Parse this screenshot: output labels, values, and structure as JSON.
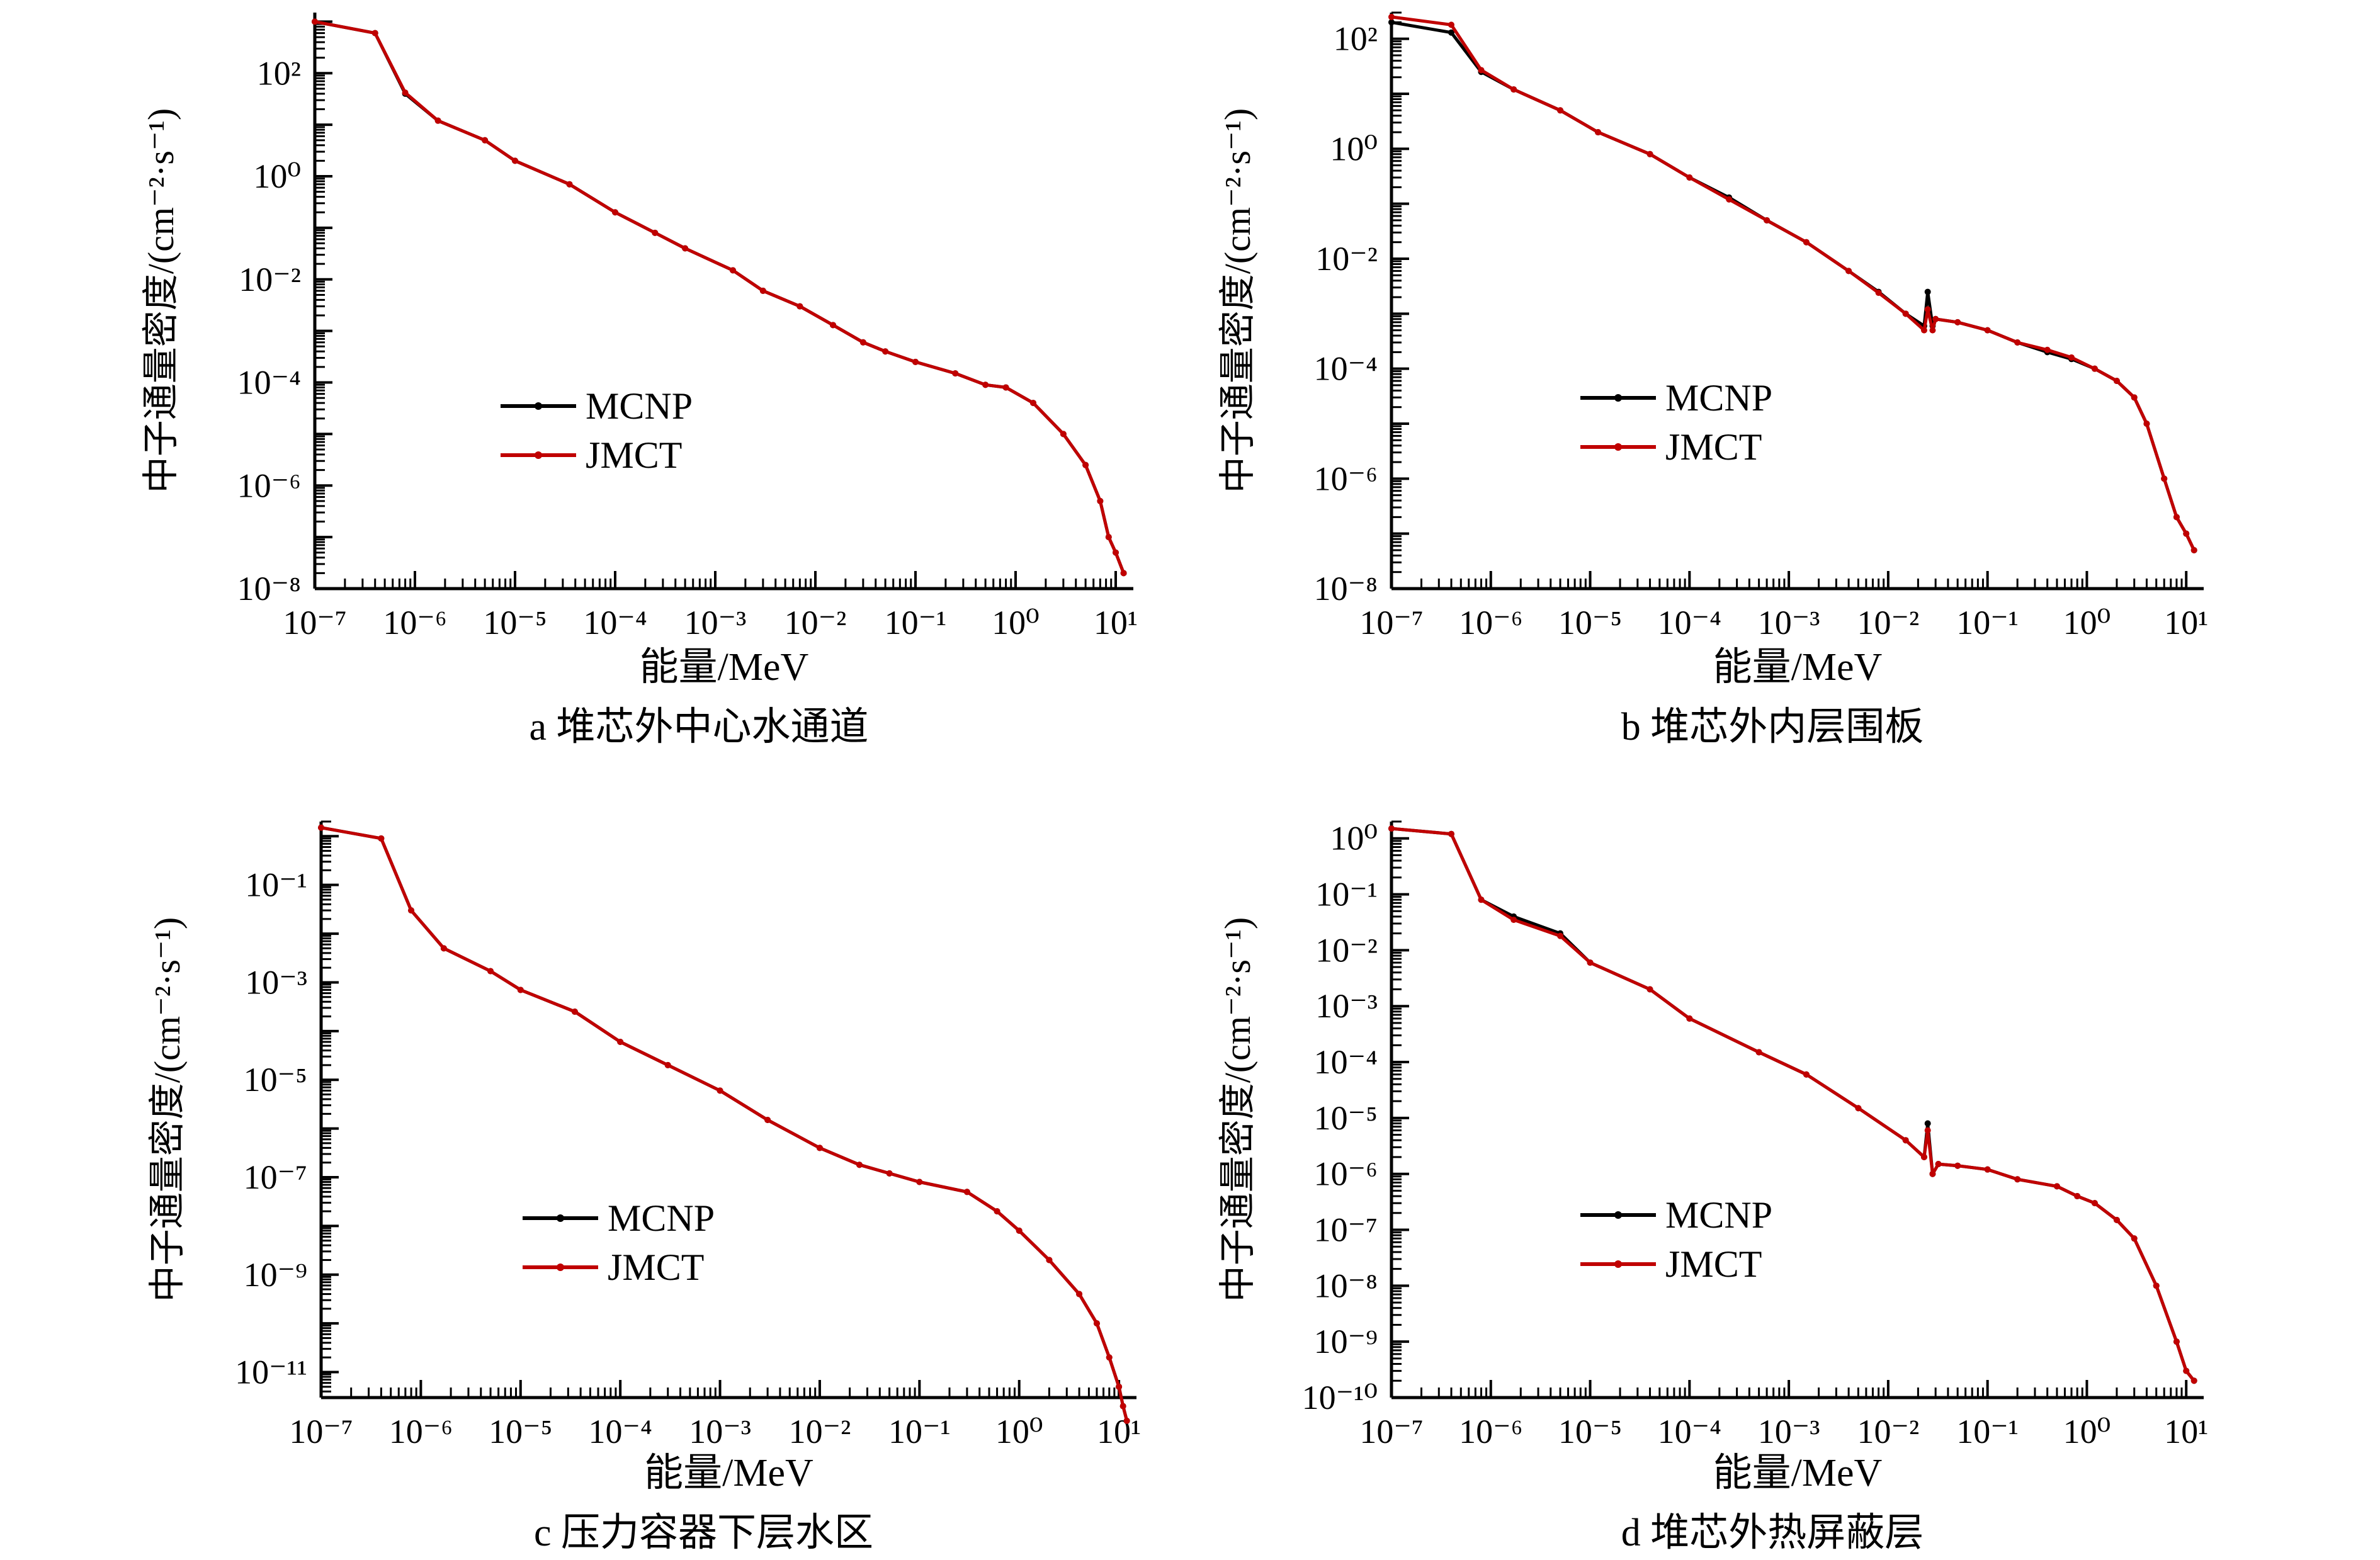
{
  "chart_data": [
    {
      "type": "line",
      "caption": "a  堆芯外中心水通道",
      "xlabel": "能量/MeV",
      "ylabel": "中子通量密度/(cm⁻²·s⁻¹)",
      "xscale": "log",
      "yscale": "log",
      "xlim": [
        1e-07,
        15
      ],
      "ylim": [
        1e-08,
        1500
      ],
      "x_ticks": [
        1e-07,
        1e-06,
        1e-05,
        0.0001,
        0.001,
        0.01,
        0.1,
        1,
        10
      ],
      "x_tick_labels": [
        "10⁻⁷",
        "10⁻⁶",
        "10⁻⁵",
        "10⁻⁴",
        "10⁻³",
        "10⁻²",
        "10⁻¹",
        "10⁰",
        "10¹"
      ],
      "y_ticks": [
        1e-08,
        1e-06,
        0.0001,
        0.01,
        1,
        100
      ],
      "y_tick_labels": [
        "10⁻⁸",
        "10⁻⁶",
        "10⁻⁴",
        "10⁻²",
        "10⁰",
        "10²"
      ],
      "legend": {
        "position": "center-left",
        "entries": [
          "MCNP",
          "JMCT"
        ]
      },
      "series": [
        {
          "name": "MCNP",
          "color": "#000000",
          "x": [
            1e-07,
            4e-07,
            8e-07,
            1.7e-06,
            5e-06,
            1e-05,
            3.5e-05,
            0.0001,
            0.00025,
            0.0005,
            0.0015,
            0.003,
            0.007,
            0.015,
            0.03,
            0.05,
            0.1,
            0.25,
            0.5,
            0.8,
            1.5,
            3,
            5,
            7,
            8.5,
            10,
            12
          ],
          "y": [
            1000,
            600,
            40,
            12,
            5,
            2,
            0.7,
            0.2,
            0.08,
            0.04,
            0.015,
            0.006,
            0.003,
            0.0013,
            0.0006,
            0.0004,
            0.00025,
            0.00015,
            9e-05,
            8e-05,
            4e-05,
            1e-05,
            2.5e-06,
            5e-07,
            1e-07,
            5e-08,
            2e-08
          ]
        },
        {
          "name": "JMCT",
          "color": "#c00000",
          "x": [
            1e-07,
            4e-07,
            8e-07,
            1.7e-06,
            5e-06,
            1e-05,
            3.5e-05,
            0.0001,
            0.00025,
            0.0005,
            0.0015,
            0.003,
            0.007,
            0.015,
            0.03,
            0.05,
            0.1,
            0.25,
            0.5,
            0.8,
            1.5,
            3,
            5,
            7,
            8.5,
            10,
            12
          ],
          "y": [
            1000,
            600,
            42,
            12,
            5,
            2,
            0.7,
            0.2,
            0.08,
            0.04,
            0.015,
            0.006,
            0.003,
            0.0013,
            0.0006,
            0.0004,
            0.00025,
            0.00015,
            9e-05,
            8e-05,
            4e-05,
            1e-05,
            2.5e-06,
            5e-07,
            1e-07,
            5e-08,
            2e-08
          ]
        }
      ]
    },
    {
      "type": "line",
      "caption": "b  堆芯外内层围板",
      "xlabel": "能量/MeV",
      "ylabel": "中子通量密度/(cm⁻²·s⁻¹)",
      "xscale": "log",
      "yscale": "log",
      "xlim": [
        1e-07,
        15
      ],
      "ylim": [
        1e-08,
        300
      ],
      "x_ticks": [
        1e-07,
        1e-06,
        1e-05,
        0.0001,
        0.001,
        0.01,
        0.1,
        1,
        10
      ],
      "x_tick_labels": [
        "10⁻⁷",
        "10⁻⁶",
        "10⁻⁵",
        "10⁻⁴",
        "10⁻³",
        "10⁻²",
        "10⁻¹",
        "10⁰",
        "10¹"
      ],
      "y_ticks": [
        1e-08,
        1e-06,
        0.0001,
        0.01,
        1,
        100
      ],
      "y_tick_labels": [
        "10⁻⁸",
        "10⁻⁶",
        "10⁻⁴",
        "10⁻²",
        "10⁰",
        "10²"
      ],
      "legend": {
        "position": "center-left",
        "entries": [
          "MCNP",
          "JMCT"
        ]
      },
      "series": [
        {
          "name": "MCNP",
          "color": "#000000",
          "x": [
            1e-07,
            4e-07,
            8e-07,
            1.7e-06,
            5e-06,
            1.2e-05,
            4e-05,
            0.0001,
            0.00025,
            0.0006,
            0.0015,
            0.004,
            0.008,
            0.015,
            0.023,
            0.025,
            0.028,
            0.03,
            0.05,
            0.1,
            0.2,
            0.4,
            0.7,
            1.2,
            2,
            3,
            4,
            6,
            8,
            10,
            12
          ],
          "y": [
            200,
            130,
            25,
            12,
            5,
            2,
            0.8,
            0.3,
            0.13,
            0.05,
            0.02,
            0.006,
            0.0025,
            0.001,
            0.0006,
            0.0025,
            0.0006,
            0.0008,
            0.0007,
            0.0005,
            0.0003,
            0.0002,
            0.00015,
            0.0001,
            6e-05,
            3e-05,
            1e-05,
            1e-06,
            2e-07,
            1e-07,
            5e-08
          ]
        },
        {
          "name": "JMCT",
          "color": "#c00000",
          "x": [
            1e-07,
            4e-07,
            8e-07,
            1.7e-06,
            5e-06,
            1.2e-05,
            4e-05,
            0.0001,
            0.00025,
            0.0006,
            0.0015,
            0.004,
            0.008,
            0.015,
            0.023,
            0.025,
            0.028,
            0.03,
            0.05,
            0.1,
            0.2,
            0.4,
            0.7,
            1.2,
            2,
            3,
            4,
            6,
            8,
            10,
            12
          ],
          "y": [
            250,
            180,
            27,
            12,
            5,
            2,
            0.8,
            0.3,
            0.12,
            0.05,
            0.02,
            0.006,
            0.0024,
            0.001,
            0.0005,
            0.0012,
            0.0005,
            0.0008,
            0.0007,
            0.0005,
            0.0003,
            0.00022,
            0.00016,
            0.0001,
            6e-05,
            3e-05,
            1e-05,
            1e-06,
            2e-07,
            1e-07,
            5e-08
          ]
        }
      ]
    },
    {
      "type": "line",
      "caption": "c  压力容器下层水区",
      "xlabel": "能量/MeV",
      "ylabel": "中子通量密度/(cm⁻²·s⁻¹)",
      "xscale": "log",
      "yscale": "log",
      "xlim": [
        1e-07,
        15
      ],
      "ylim": [
        3e-12,
        2
      ],
      "x_ticks": [
        1e-07,
        1e-06,
        1e-05,
        0.0001,
        0.001,
        0.01,
        0.1,
        1,
        10
      ],
      "x_tick_labels": [
        "10⁻⁷",
        "10⁻⁶",
        "10⁻⁵",
        "10⁻⁴",
        "10⁻³",
        "10⁻²",
        "10⁻¹",
        "10⁰",
        "10¹"
      ],
      "y_ticks": [
        1e-11,
        1e-09,
        1e-07,
        1e-05,
        0.001,
        0.1
      ],
      "y_tick_labels": [
        "10⁻¹¹",
        "10⁻⁹",
        "10⁻⁷",
        "10⁻⁵",
        "10⁻³",
        "10⁻¹"
      ],
      "legend": {
        "position": "lower-left",
        "entries": [
          "MCNP",
          "JMCT"
        ]
      },
      "series": [
        {
          "name": "MCNP",
          "color": "#000000",
          "x": [
            1e-07,
            4e-07,
            8e-07,
            1.7e-06,
            5e-06,
            1e-05,
            3.5e-05,
            0.0001,
            0.0003,
            0.001,
            0.003,
            0.01,
            0.025,
            0.05,
            0.1,
            0.3,
            0.6,
            1,
            2,
            4,
            6,
            8,
            10,
            11,
            12
          ],
          "y": [
            1.5,
            0.9,
            0.03,
            0.005,
            0.0017,
            0.0007,
            0.00025,
            6e-05,
            2e-05,
            6e-06,
            1.5e-06,
            4e-07,
            1.8e-07,
            1.2e-07,
            8e-08,
            5e-08,
            2e-08,
            8e-09,
            2e-09,
            4e-10,
            1e-10,
            2e-11,
            5e-12,
            2e-12,
            1e-12
          ]
        },
        {
          "name": "JMCT",
          "color": "#c00000",
          "x": [
            1e-07,
            4e-07,
            8e-07,
            1.7e-06,
            5e-06,
            1e-05,
            3.5e-05,
            0.0001,
            0.0003,
            0.001,
            0.003,
            0.01,
            0.025,
            0.05,
            0.1,
            0.3,
            0.6,
            1,
            2,
            4,
            6,
            8,
            10,
            11,
            12
          ],
          "y": [
            1.5,
            0.9,
            0.03,
            0.005,
            0.0017,
            0.0007,
            0.00025,
            6e-05,
            2e-05,
            6e-06,
            1.5e-06,
            4e-07,
            1.8e-07,
            1.2e-07,
            8e-08,
            5e-08,
            2e-08,
            8e-09,
            2e-09,
            4e-10,
            1e-10,
            2e-11,
            5e-12,
            2e-12,
            1e-12
          ]
        }
      ]
    },
    {
      "type": "line",
      "caption": "d  堆芯外热屏蔽层",
      "xlabel": "能量/MeV",
      "ylabel": "中子通量密度/(cm⁻²·s⁻¹)",
      "xscale": "log",
      "yscale": "log",
      "xlim": [
        1e-07,
        15
      ],
      "ylim": [
        1e-10,
        2
      ],
      "x_ticks": [
        1e-07,
        1e-06,
        1e-05,
        0.0001,
        0.001,
        0.01,
        0.1,
        1,
        10
      ],
      "x_tick_labels": [
        "10⁻⁷",
        "10⁻⁶",
        "10⁻⁵",
        "10⁻⁴",
        "10⁻³",
        "10⁻²",
        "10⁻¹",
        "10⁰",
        "10¹"
      ],
      "y_ticks": [
        1e-10,
        1e-09,
        1e-08,
        1e-07,
        1e-06,
        1e-05,
        0.0001,
        0.001,
        0.01,
        0.1,
        1
      ],
      "y_tick_labels": [
        "10⁻¹⁰",
        "10⁻⁹",
        "10⁻⁸",
        "10⁻⁷",
        "10⁻⁶",
        "10⁻⁵",
        "10⁻⁴",
        "10⁻³",
        "10⁻²",
        "10⁻¹",
        "10⁰"
      ],
      "legend": {
        "position": "lower-left",
        "entries": [
          "MCNP",
          "JMCT"
        ]
      },
      "series": [
        {
          "name": "MCNP",
          "color": "#000000",
          "x": [
            1e-07,
            4e-07,
            8e-07,
            1.7e-06,
            5e-06,
            1e-05,
            4e-05,
            0.0001,
            0.0005,
            0.0015,
            0.005,
            0.015,
            0.023,
            0.025,
            0.028,
            0.032,
            0.05,
            0.1,
            0.2,
            0.5,
            0.8,
            1.2,
            2,
            3,
            5,
            8,
            10,
            12
          ],
          "y": [
            1.5,
            1.2,
            0.08,
            0.04,
            0.02,
            0.006,
            0.002,
            0.0006,
            0.00015,
            6e-05,
            1.5e-05,
            4e-06,
            2e-06,
            8e-06,
            1e-06,
            1.5e-06,
            1.4e-06,
            1.2e-06,
            8e-07,
            6e-07,
            4e-07,
            3e-07,
            1.5e-07,
            7e-08,
            1e-08,
            1e-09,
            3e-10,
            2e-10
          ]
        },
        {
          "name": "JMCT",
          "color": "#c00000",
          "x": [
            1e-07,
            4e-07,
            8e-07,
            1.7e-06,
            5e-06,
            1e-05,
            4e-05,
            0.0001,
            0.0005,
            0.0015,
            0.005,
            0.015,
            0.023,
            0.025,
            0.028,
            0.032,
            0.05,
            0.1,
            0.2,
            0.5,
            0.8,
            1.2,
            2,
            3,
            5,
            8,
            10,
            12
          ],
          "y": [
            1.5,
            1.2,
            0.08,
            0.035,
            0.018,
            0.006,
            0.002,
            0.0006,
            0.00015,
            6e-05,
            1.5e-05,
            4e-06,
            2e-06,
            6e-06,
            1e-06,
            1.5e-06,
            1.4e-06,
            1.2e-06,
            8e-07,
            6e-07,
            4e-07,
            3e-07,
            1.5e-07,
            7e-08,
            1e-08,
            1e-09,
            3e-10,
            2e-10
          ]
        }
      ]
    }
  ]
}
